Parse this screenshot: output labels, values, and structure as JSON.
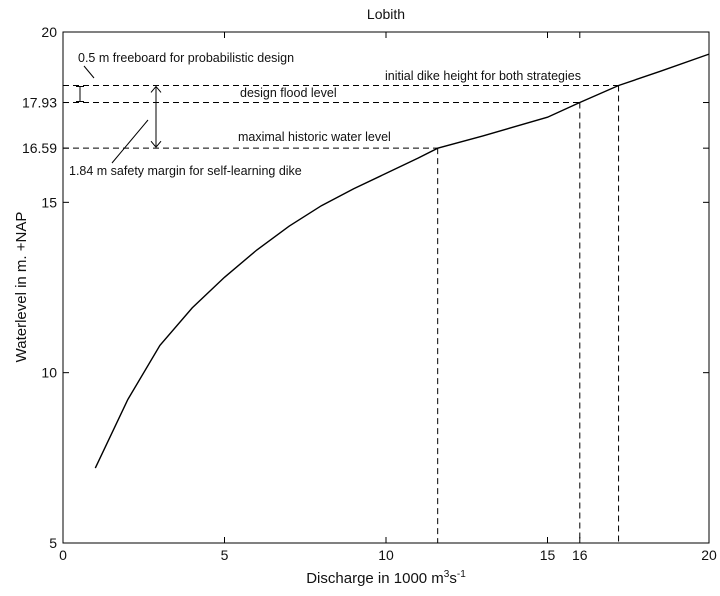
{
  "chart_data": {
    "type": "line",
    "title": "Lobith",
    "xlabel": {
      "main": "Discharge in 1000 m",
      "sup1": "3",
      "mid": "s",
      "sup2": "-1"
    },
    "ylabel": "Waterlevel in m. +NAP",
    "xlim": [
      0,
      20
    ],
    "ylim": [
      5,
      20
    ],
    "x_ticks": [
      {
        "value": 0,
        "label": "0"
      },
      {
        "value": 5,
        "label": "5"
      },
      {
        "value": 10,
        "label": "10"
      },
      {
        "value": 15,
        "label": "15"
      },
      {
        "value": 16,
        "label": "16"
      },
      {
        "value": 20,
        "label": "20"
      }
    ],
    "y_ticks": [
      {
        "value": 5,
        "label": "5"
      },
      {
        "value": 10,
        "label": "10"
      },
      {
        "value": 15,
        "label": "15"
      },
      {
        "value": 16.59,
        "label": "16.59"
      },
      {
        "value": 17.93,
        "label": "17.93"
      },
      {
        "value": 20,
        "label": "20"
      }
    ],
    "grid": false,
    "series": [
      {
        "color": "#000000",
        "x": [
          1,
          2,
          3,
          4,
          5,
          6,
          7,
          8,
          9,
          10,
          11,
          11.6,
          13,
          15,
          16,
          17.2,
          18.5,
          20
        ],
        "y": [
          7.2,
          9.2,
          10.8,
          11.9,
          12.8,
          13.6,
          14.3,
          14.9,
          15.4,
          15.85,
          16.3,
          16.59,
          16.95,
          17.5,
          17.93,
          18.43,
          18.85,
          19.35
        ]
      }
    ],
    "reference_lines": [
      {
        "level": 16.59,
        "x_end": 11.6
      },
      {
        "level": 17.93,
        "x_end": 16
      },
      {
        "level": 18.43,
        "x_end": 17.2
      }
    ],
    "annotations": [
      {
        "id": "freeboard",
        "text": "0.5 m freeboard for probabilistic design"
      },
      {
        "id": "initial",
        "text": "initial dike height for both strategies"
      },
      {
        "id": "design",
        "text": "design flood level"
      },
      {
        "id": "historic",
        "text": "maximal historic water level"
      },
      {
        "id": "margin",
        "text": "1.84 m safety margin for self-learning dike"
      }
    ]
  }
}
